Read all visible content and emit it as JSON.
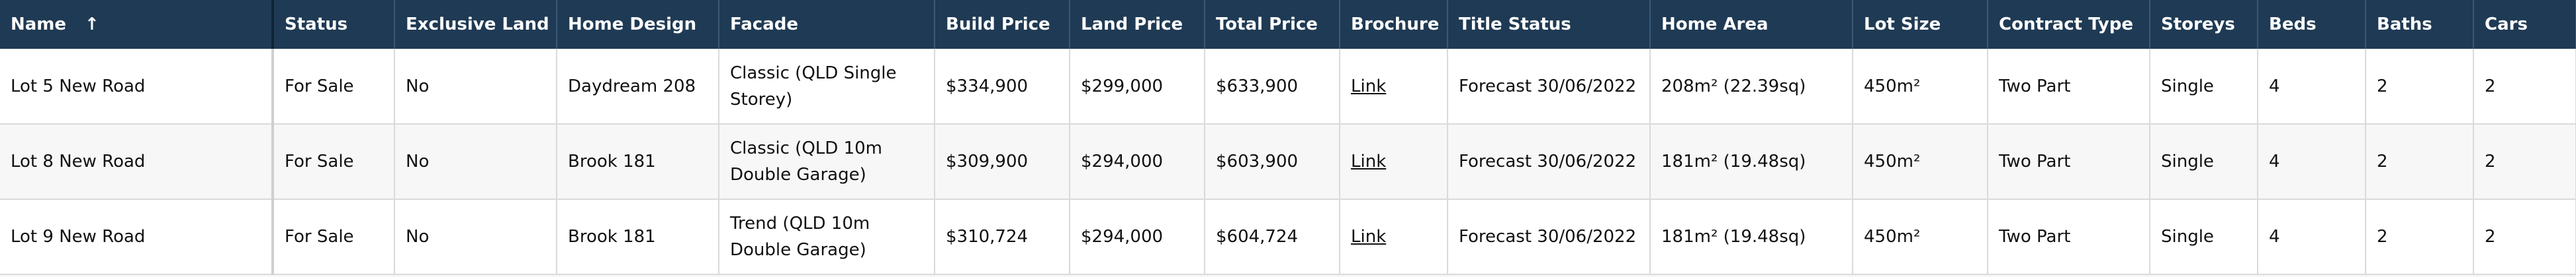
{
  "table": {
    "headers": [
      {
        "key": "name",
        "label": "Name"
      },
      {
        "key": "status",
        "label": "Status"
      },
      {
        "key": "exclusive_land",
        "label": "Exclusive Land"
      },
      {
        "key": "home_design",
        "label": "Home Design"
      },
      {
        "key": "facade",
        "label": "Facade"
      },
      {
        "key": "build_price",
        "label": "Build Price"
      },
      {
        "key": "land_price",
        "label": "Land Price"
      },
      {
        "key": "total_price",
        "label": "Total Price"
      },
      {
        "key": "brochure",
        "label": "Brochure"
      },
      {
        "key": "title_status",
        "label": "Title Status"
      },
      {
        "key": "home_area",
        "label": "Home Area"
      },
      {
        "key": "lot_size",
        "label": "Lot Size"
      },
      {
        "key": "contract_type",
        "label": "Contract Type"
      },
      {
        "key": "storeys",
        "label": "Storeys"
      },
      {
        "key": "beds",
        "label": "Beds"
      },
      {
        "key": "baths",
        "label": "Baths"
      },
      {
        "key": "cars",
        "label": "Cars"
      }
    ],
    "sort_indicator": "↑",
    "rows": [
      {
        "name": "Lot 5 New Road",
        "status": "For Sale",
        "exclusive_land": "No",
        "home_design": "Daydream 208",
        "facade": "Classic (QLD Single Storey)",
        "build_price": "$334,900",
        "land_price": "$299,000",
        "total_price": "$633,900",
        "brochure": "Link",
        "title_status": "Forecast 30/06/2022",
        "home_area": "208m² (22.39sq)",
        "lot_size": "450m²",
        "contract_type": "Two Part",
        "storeys": "Single",
        "beds": "4",
        "baths": "2",
        "cars": "2"
      },
      {
        "name": "Lot 8 New Road",
        "status": "For Sale",
        "exclusive_land": "No",
        "home_design": "Brook 181",
        "facade": "Classic (QLD 10m Double Garage)",
        "build_price": "$309,900",
        "land_price": "$294,000",
        "total_price": "$603,900",
        "brochure": "Link",
        "title_status": "Forecast 30/06/2022",
        "home_area": "181m² (19.48sq)",
        "lot_size": "450m²",
        "contract_type": "Two Part",
        "storeys": "Single",
        "beds": "4",
        "baths": "2",
        "cars": "2"
      },
      {
        "name": "Lot 9 New Road",
        "status": "For Sale",
        "exclusive_land": "No",
        "home_design": "Brook 181",
        "facade": "Trend (QLD 10m Double Garage)",
        "build_price": "$310,724",
        "land_price": "$294,000",
        "total_price": "$604,724",
        "brochure": "Link",
        "title_status": "Forecast 30/06/2022",
        "home_area": "181m² (19.48sq)",
        "lot_size": "450m²",
        "contract_type": "Two Part",
        "storeys": "Single",
        "beds": "4",
        "baths": "2",
        "cars": "2"
      }
    ]
  }
}
